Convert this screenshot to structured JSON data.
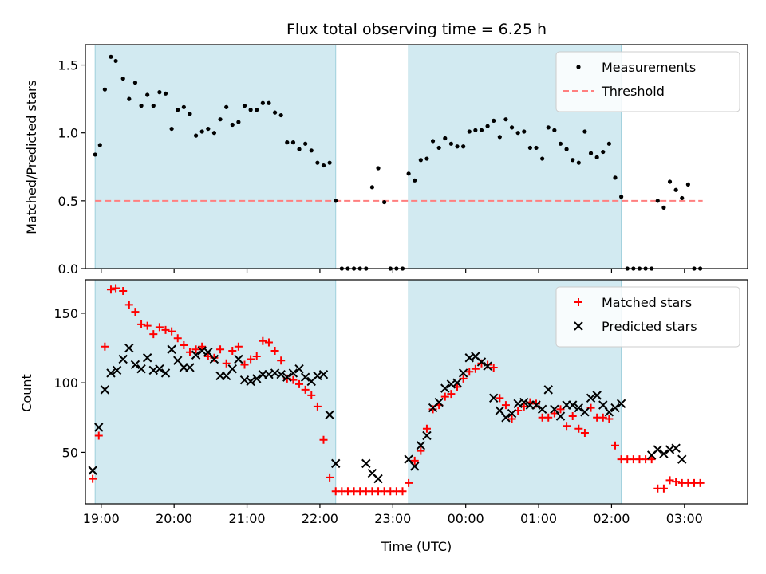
{
  "chart_data": [
    {
      "type": "scatter",
      "title": "Flux total observing time = 6.25 h",
      "xlabel": "",
      "ylabel": "Matched/Predicted stars",
      "xlim": [
        "18:47",
        "03:52"
      ],
      "ylim": [
        0,
        1.65
      ],
      "y_ticks": [
        0.0,
        0.5,
        1.0,
        1.5
      ],
      "y_tick_labels": [
        "0.0",
        "0.5",
        "1.0",
        "1.5"
      ],
      "x_tick_labels_shown": false,
      "grid": false,
      "legend_position": "top-right",
      "observing_windows": [
        [
          "18:55",
          "22:13"
        ],
        [
          "23:13",
          "02:08"
        ]
      ],
      "threshold": {
        "name": "Threshold",
        "value": 0.5,
        "x_range": [
          "18:55",
          "03:15"
        ],
        "color": "#ff7f7f"
      },
      "series": [
        {
          "name": "Measurements",
          "marker": "dot",
          "color": "#000000",
          "x": [
            "18:55",
            "18:59",
            "19:03",
            "19:08",
            "19:12",
            "19:18",
            "19:23",
            "19:28",
            "19:33",
            "19:38",
            "19:43",
            "19:48",
            "19:53",
            "19:58",
            "20:03",
            "20:08",
            "20:13",
            "20:18",
            "20:23",
            "20:28",
            "20:33",
            "20:38",
            "20:43",
            "20:48",
            "20:53",
            "20:58",
            "21:03",
            "21:08",
            "21:13",
            "21:18",
            "21:23",
            "21:28",
            "21:33",
            "21:38",
            "21:43",
            "21:48",
            "21:53",
            "21:58",
            "22:03",
            "22:08",
            "22:13",
            "22:18",
            "22:23",
            "22:28",
            "22:33",
            "22:38",
            "22:43",
            "22:48",
            "22:53",
            "22:58",
            "23:03",
            "23:08",
            "23:13",
            "23:18",
            "23:23",
            "23:28",
            "23:33",
            "23:38",
            "23:43",
            "23:48",
            "23:53",
            "23:58",
            "00:03",
            "00:08",
            "00:13",
            "00:18",
            "00:23",
            "00:28",
            "00:33",
            "00:38",
            "00:43",
            "00:48",
            "00:53",
            "00:58",
            "01:03",
            "01:08",
            "01:13",
            "01:18",
            "01:23",
            "01:28",
            "01:33",
            "01:38",
            "01:43",
            "01:48",
            "01:53",
            "01:58",
            "02:03",
            "02:08",
            "02:13",
            "02:18",
            "02:23",
            "02:28",
            "02:33",
            "02:38",
            "02:43",
            "02:48",
            "02:53",
            "02:58",
            "03:03",
            "03:08",
            "03:13"
          ],
          "y": [
            0.84,
            0.91,
            1.32,
            1.56,
            1.53,
            1.4,
            1.25,
            1.37,
            1.2,
            1.28,
            1.2,
            1.3,
            1.29,
            1.03,
            1.17,
            1.19,
            1.14,
            0.98,
            1.01,
            1.03,
            1.0,
            1.1,
            1.19,
            1.06,
            1.08,
            1.2,
            1.17,
            1.17,
            1.22,
            1.22,
            1.15,
            1.13,
            0.93,
            0.93,
            0.88,
            0.92,
            0.87,
            0.78,
            0.76,
            0.78,
            0.5,
            0.0,
            0.0,
            0.0,
            0.0,
            0.0,
            0.6,
            0.74,
            0.49,
            0.0,
            0.0,
            0.0,
            0.7,
            0.65,
            0.8,
            0.81,
            0.94,
            0.89,
            0.96,
            0.92,
            0.9,
            0.9,
            1.01,
            1.02,
            1.02,
            1.05,
            1.09,
            0.97,
            1.1,
            1.04,
            1.0,
            1.01,
            0.89,
            0.89,
            0.81,
            1.04,
            1.02,
            0.92,
            0.88,
            0.8,
            0.78,
            1.01,
            0.85,
            0.82,
            0.86,
            0.92,
            0.67,
            0.53,
            0.0,
            0.0,
            0.0,
            0.0,
            0.0,
            0.5,
            0.45,
            0.64,
            0.58,
            0.52,
            0.62,
            0.0,
            0.0
          ]
        }
      ]
    },
    {
      "type": "scatter",
      "xlabel": "Time (UTC)",
      "ylabel": "Count",
      "xlim": [
        "18:47",
        "03:52"
      ],
      "ylim": [
        13,
        174
      ],
      "y_ticks": [
        50,
        100,
        150
      ],
      "y_tick_labels": [
        "50",
        "100",
        "150"
      ],
      "x_tick_labels": [
        "19:00",
        "20:00",
        "21:00",
        "22:00",
        "23:00",
        "00:00",
        "01:00",
        "02:00",
        "03:00"
      ],
      "grid": false,
      "legend_position": "top-right",
      "observing_windows": [
        [
          "18:55",
          "22:13"
        ],
        [
          "23:13",
          "02:08"
        ]
      ],
      "series": [
        {
          "name": "Matched stars",
          "marker": "plus",
          "color": "#ff0000",
          "x": [
            "18:53",
            "18:58",
            "19:03",
            "19:08",
            "19:12",
            "19:18",
            "19:23",
            "19:28",
            "19:33",
            "19:38",
            "19:43",
            "19:48",
            "19:53",
            "19:58",
            "20:03",
            "20:08",
            "20:13",
            "20:18",
            "20:23",
            "20:28",
            "20:33",
            "20:38",
            "20:43",
            "20:48",
            "20:53",
            "20:58",
            "21:03",
            "21:08",
            "21:13",
            "21:18",
            "21:23",
            "21:28",
            "21:33",
            "21:38",
            "21:43",
            "21:48",
            "21:53",
            "21:58",
            "22:03",
            "22:08",
            "22:13",
            "22:18",
            "22:23",
            "22:28",
            "22:33",
            "22:38",
            "22:43",
            "22:48",
            "22:53",
            "22:58",
            "23:03",
            "23:08",
            "23:13",
            "23:18",
            "23:23",
            "23:28",
            "23:33",
            "23:38",
            "23:43",
            "23:48",
            "23:53",
            "23:58",
            "00:03",
            "00:08",
            "00:13",
            "00:18",
            "00:23",
            "00:28",
            "00:33",
            "00:38",
            "00:43",
            "00:48",
            "00:53",
            "00:58",
            "01:03",
            "01:08",
            "01:13",
            "01:18",
            "01:23",
            "01:28",
            "01:33",
            "01:38",
            "01:43",
            "01:48",
            "01:53",
            "01:58",
            "02:03",
            "02:08",
            "02:13",
            "02:18",
            "02:23",
            "02:28",
            "02:33",
            "02:38",
            "02:43",
            "02:48",
            "02:53",
            "02:58",
            "03:03",
            "03:08",
            "03:13"
          ],
          "y": [
            31,
            62,
            126,
            167,
            168,
            166,
            156,
            151,
            142,
            141,
            135,
            140,
            138,
            137,
            132,
            127,
            122,
            124,
            126,
            119,
            118,
            124,
            114,
            123,
            126,
            113,
            117,
            119,
            130,
            129,
            123,
            116,
            103,
            102,
            99,
            95,
            91,
            83,
            59,
            32,
            22,
            22,
            22,
            22,
            22,
            22,
            22,
            22,
            22,
            22,
            22,
            22,
            28,
            44,
            51,
            67,
            81,
            84,
            90,
            92,
            97,
            103,
            108,
            110,
            114,
            113,
            111,
            89,
            84,
            74,
            80,
            83,
            86,
            85,
            75,
            75,
            78,
            81,
            69,
            76,
            67,
            64,
            82,
            75,
            75,
            74,
            55,
            45,
            45,
            45,
            45,
            45,
            45,
            24,
            24,
            30,
            29,
            28,
            28,
            28,
            28
          ]
        },
        {
          "name": "Predicted stars",
          "marker": "x",
          "color": "#000000",
          "x": [
            "18:53",
            "18:58",
            "19:03",
            "19:08",
            "19:13",
            "19:18",
            "19:23",
            "19:28",
            "19:33",
            "19:38",
            "19:43",
            "19:48",
            "19:53",
            "19:58",
            "20:03",
            "20:08",
            "20:13",
            "20:18",
            "20:23",
            "20:28",
            "20:33",
            "20:38",
            "20:43",
            "20:48",
            "20:53",
            "20:58",
            "21:03",
            "21:08",
            "21:13",
            "21:18",
            "21:23",
            "21:28",
            "21:33",
            "21:38",
            "21:43",
            "21:48",
            "21:53",
            "21:58",
            "22:03",
            "22:08",
            "22:13",
            "22:38",
            "22:43",
            "22:48",
            "23:13",
            "23:18",
            "23:23",
            "23:28",
            "23:33",
            "23:38",
            "23:43",
            "23:48",
            "23:53",
            "23:58",
            "00:03",
            "00:08",
            "00:13",
            "00:18",
            "00:23",
            "00:28",
            "00:33",
            "00:38",
            "00:43",
            "00:48",
            "00:53",
            "00:58",
            "01:03",
            "01:08",
            "01:13",
            "01:18",
            "01:23",
            "01:28",
            "01:33",
            "01:38",
            "01:43",
            "01:48",
            "01:53",
            "01:58",
            "02:03",
            "02:08",
            "02:33",
            "02:38",
            "02:43",
            "02:48",
            "02:53",
            "02:58"
          ],
          "y": [
            37,
            68,
            95,
            107,
            109,
            117,
            125,
            113,
            110,
            118,
            109,
            110,
            107,
            124,
            116,
            111,
            111,
            120,
            123,
            122,
            117,
            105,
            105,
            110,
            117,
            102,
            101,
            103,
            106,
            106,
            107,
            106,
            104,
            107,
            110,
            104,
            101,
            105,
            106,
            77,
            42,
            42,
            35,
            31,
            45,
            40,
            55,
            62,
            82,
            86,
            96,
            99,
            100,
            107,
            118,
            119,
            115,
            112,
            89,
            80,
            75,
            78,
            85,
            86,
            84,
            84,
            81,
            95,
            81,
            76,
            84,
            84,
            82,
            79,
            89,
            91,
            84,
            79,
            82,
            85,
            48,
            52,
            49,
            52,
            53,
            45
          ]
        }
      ]
    }
  ]
}
